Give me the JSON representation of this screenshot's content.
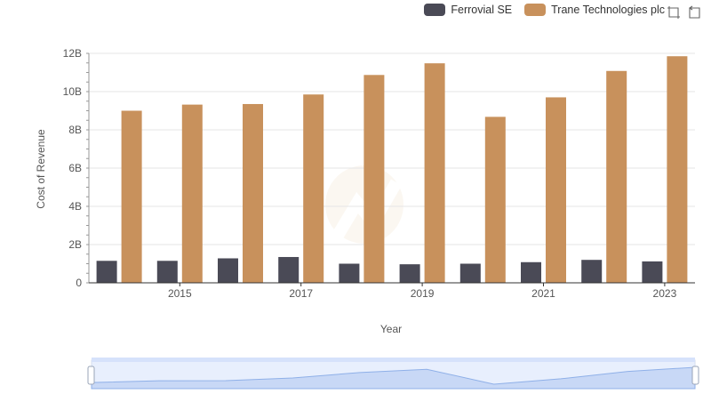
{
  "legend": {
    "items": [
      {
        "label": "Ferrovial SE",
        "color": "#4a4a56"
      },
      {
        "label": "Trane Technologies plc",
        "color": "#c8915c"
      }
    ]
  },
  "toolbox": {
    "zoom_icon": "zoom-select-icon",
    "reset_icon": "zoom-reset-icon"
  },
  "colors": {
    "ferrovial": "#4a4a56",
    "trane": "#c8915c",
    "slider_fill": "#d6e2fb",
    "slider_line": "#8fb0e8",
    "grid": "#e6e6e6"
  },
  "chart_data": {
    "type": "bar",
    "categories": [
      "2014",
      "2015",
      "2016",
      "2017",
      "2018",
      "2019",
      "2020",
      "2021",
      "2022",
      "2023"
    ],
    "x_tick_labels": [
      "2015",
      "2017",
      "2019",
      "2021",
      "2023"
    ],
    "series": [
      {
        "name": "Ferrovial SE",
        "values": [
          1.15,
          1.15,
          1.28,
          1.35,
          1.0,
          0.97,
          1.0,
          1.08,
          1.2,
          1.12
        ]
      },
      {
        "name": "Trane Technologies plc",
        "values": [
          9.0,
          9.32,
          9.35,
          9.85,
          10.87,
          11.48,
          8.68,
          9.7,
          11.08,
          11.85
        ]
      }
    ],
    "xlabel": "Year",
    "ylabel": "Cost of Revenue",
    "ylim": [
      0,
      12
    ],
    "y_ticks": [
      "0",
      "2B",
      "4B",
      "6B",
      "8B",
      "10B",
      "12B"
    ],
    "grid": true,
    "legend_position": "top-right"
  }
}
